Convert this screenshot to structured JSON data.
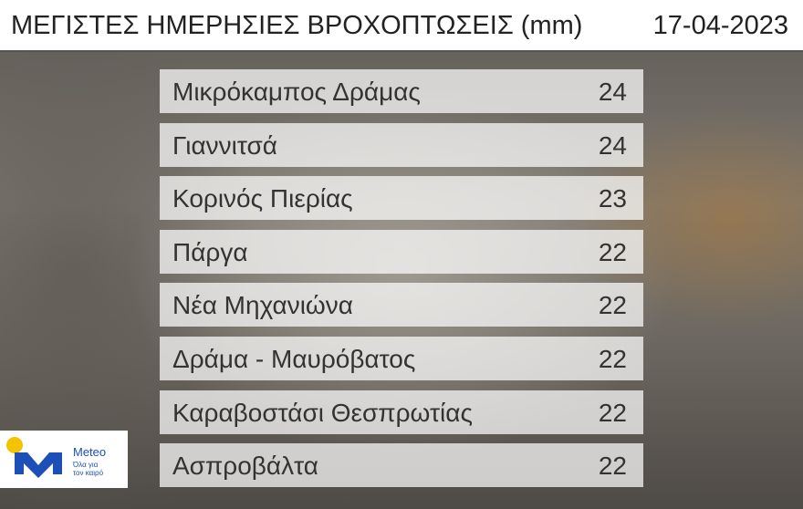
{
  "header": {
    "title": "ΜΕΓΙΣΤΕΣ ΗΜΕΡΗΣΙΕΣ ΒΡΟΧΟΠΤΩΣΕΙΣ (mm)",
    "date": "17-04-2023"
  },
  "table": {
    "rows": [
      [
        "Μικρόκαμπος Δράμας",
        24
      ],
      [
        "Γιαννιτσά",
        24
      ],
      [
        "Κορινός Πιερίας",
        23
      ],
      [
        "Πάργα",
        22
      ],
      [
        "Νέα Μηχανιώνα",
        22
      ],
      [
        "Δράμα - Μαυρόβατος",
        22
      ],
      [
        "Καραβοστάσι Θεσπρωτίας",
        22
      ],
      [
        "Ασπροβάλτα",
        22
      ]
    ]
  },
  "logo": {
    "name": "Meteo",
    "tagline_line1": "Όλα για",
    "tagline_line2": "τον καιρό"
  }
}
